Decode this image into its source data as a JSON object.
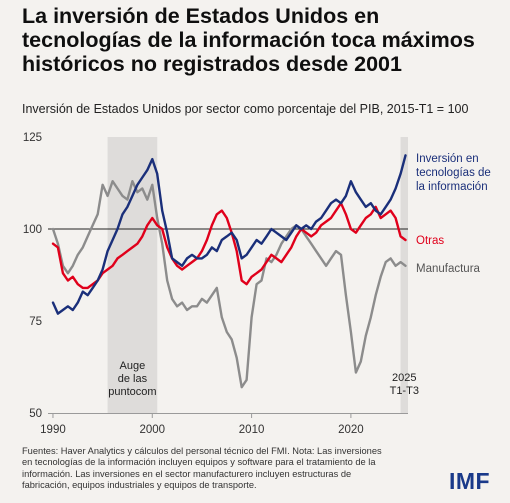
{
  "title_lines": [
    "La inversión de Estados Unidos en",
    "tecnologías de la información toca máximos",
    "históricos no registrados desde 2001"
  ],
  "subtitle": "Inversión de Estados Unidos por sector como porcentaje del PIB, 2015-T1 = 100",
  "footnote_lines": [
    "Fuentes: Haver Analytics y cálculos del personal técnico del FMI. Nota: Las inversiones",
    "en tecnologías de la información incluyen equipos y software para el tratamiento de la",
    "información. Las inversiones en el sector manufacturero incluyen estructuras de",
    "fabricación, equipos industriales y equipos de transporte."
  ],
  "logo": "IMF",
  "chart_data": {
    "type": "line",
    "xlim": [
      1989.5,
      2025.75
    ],
    "ylim": [
      50,
      125
    ],
    "x_ticks": [
      1990,
      2000,
      2010,
      2020
    ],
    "x_tick_labels": [
      "1990",
      "2000",
      "2010",
      "2020"
    ],
    "y_ticks": [
      50,
      75,
      100,
      125
    ],
    "y_tick_labels": [
      "50",
      "75",
      "100",
      "125"
    ],
    "grid": false,
    "reference_line": 100,
    "shaded_regions": [
      {
        "start": 1995.5,
        "end": 2000.5,
        "label_lines": [
          "Auge",
          "de las",
          "puntocom"
        ]
      },
      {
        "start": 2025.0,
        "end": 2025.75,
        "label_lines": [
          "2025",
          "T1-T3"
        ]
      }
    ],
    "colors": {
      "ti": "#1a2f7a",
      "otras": "#e0001b",
      "manufactura": "#8c8c8c",
      "shade": "#dedcda"
    },
    "series": [
      {
        "name": "Inversión en tecnologías de la información",
        "label_lines": [
          "Inversión en",
          "tecnologías de",
          "la información"
        ],
        "color": "#1a2f7a",
        "x": [
          1990,
          1990.5,
          1991,
          1991.5,
          1992,
          1992.5,
          1993,
          1993.5,
          1994,
          1994.5,
          1995,
          1995.5,
          1996,
          1996.5,
          1997,
          1997.5,
          1998,
          1998.5,
          1999,
          1999.5,
          2000,
          2000.5,
          2001,
          2001.5,
          2002,
          2002.5,
          2003,
          2003.5,
          2004,
          2004.5,
          2005,
          2005.5,
          2006,
          2006.5,
          2007,
          2007.5,
          2008,
          2008.5,
          2009,
          2009.5,
          2010,
          2010.5,
          2011,
          2011.5,
          2012,
          2012.5,
          2013,
          2013.5,
          2014,
          2014.5,
          2015,
          2015.5,
          2016,
          2016.5,
          2017,
          2017.5,
          2018,
          2018.5,
          2019,
          2019.5,
          2020,
          2020.5,
          2021,
          2021.5,
          2022,
          2022.5,
          2023,
          2023.5,
          2024,
          2024.5,
          2025,
          2025.5
        ],
        "values": [
          80,
          77,
          78,
          79,
          78,
          80,
          83,
          82,
          84,
          86,
          89,
          94,
          97,
          100,
          104,
          106,
          109,
          112,
          114,
          116,
          119,
          115,
          105,
          99,
          92,
          91,
          90,
          92,
          93,
          92,
          92,
          93,
          95,
          94,
          97,
          98,
          99,
          97,
          92,
          93,
          95,
          97,
          96,
          98,
          100,
          99,
          98,
          97,
          99,
          101,
          100,
          101,
          100,
          102,
          103,
          105,
          107,
          108,
          107,
          109,
          113,
          110,
          108,
          106,
          107,
          105,
          104,
          106,
          108,
          111,
          115,
          120
        ]
      },
      {
        "name": "Otras",
        "label_lines": [
          "Otras"
        ],
        "color": "#e0001b",
        "x": [
          1990,
          1990.5,
          1991,
          1991.5,
          1992,
          1992.5,
          1993,
          1993.5,
          1994,
          1994.5,
          1995,
          1995.5,
          1996,
          1996.5,
          1997,
          1997.5,
          1998,
          1998.5,
          1999,
          1999.5,
          2000,
          2000.5,
          2001,
          2001.5,
          2002,
          2002.5,
          2003,
          2003.5,
          2004,
          2004.5,
          2005,
          2005.5,
          2006,
          2006.5,
          2007,
          2007.5,
          2008,
          2008.5,
          2009,
          2009.5,
          2010,
          2010.5,
          2011,
          2011.5,
          2012,
          2012.5,
          2013,
          2013.5,
          2014,
          2014.5,
          2015,
          2015.5,
          2016,
          2016.5,
          2017,
          2017.5,
          2018,
          2018.5,
          2019,
          2019.5,
          2020,
          2020.5,
          2021,
          2021.5,
          2022,
          2022.5,
          2023,
          2023.5,
          2024,
          2024.5,
          2025,
          2025.5
        ],
        "values": [
          96,
          95,
          88,
          86,
          87,
          85,
          84,
          84,
          85,
          86,
          88,
          89,
          90,
          92,
          93,
          94,
          95,
          96,
          98,
          101,
          103,
          101,
          100,
          95,
          92,
          90,
          89,
          90,
          91,
          92,
          94,
          97,
          101,
          104,
          105,
          103,
          99,
          94,
          86,
          85,
          87,
          88,
          89,
          91,
          93,
          92,
          91,
          93,
          95,
          98,
          100,
          99,
          98,
          99,
          101,
          102,
          103,
          105,
          107,
          104,
          100,
          99,
          101,
          103,
          104,
          106,
          103,
          104,
          105,
          103,
          98,
          97
        ]
      },
      {
        "name": "Manufactura",
        "label_lines": [
          "Manufactura"
        ],
        "color": "#8c8c8c",
        "x": [
          1990,
          1990.5,
          1991,
          1991.5,
          1992,
          1992.5,
          1993,
          1993.5,
          1994,
          1994.5,
          1995,
          1995.5,
          1996,
          1996.5,
          1997,
          1997.5,
          1998,
          1998.5,
          1999,
          1999.5,
          2000,
          2000.5,
          2001,
          2001.5,
          2002,
          2002.5,
          2003,
          2003.5,
          2004,
          2004.5,
          2005,
          2005.5,
          2006,
          2006.5,
          2007,
          2007.5,
          2008,
          2008.5,
          2009,
          2009.5,
          2010,
          2010.5,
          2011,
          2011.5,
          2012,
          2012.5,
          2013,
          2013.5,
          2014,
          2014.5,
          2015,
          2015.5,
          2016,
          2016.5,
          2017,
          2017.5,
          2018,
          2018.5,
          2019,
          2019.5,
          2020,
          2020.5,
          2021,
          2021.5,
          2022,
          2022.5,
          2023,
          2023.5,
          2024,
          2024.5,
          2025,
          2025.5
        ],
        "values": [
          100,
          96,
          90,
          88,
          90,
          93,
          95,
          98,
          101,
          104,
          112,
          109,
          113,
          111,
          109,
          108,
          113,
          110,
          111,
          108,
          112,
          103,
          96,
          86,
          81,
          79,
          80,
          78,
          79,
          79,
          81,
          80,
          82,
          84,
          76,
          72,
          70,
          65,
          57,
          59,
          76,
          85,
          86,
          92,
          91,
          93,
          96,
          98,
          100,
          101,
          100,
          98,
          96,
          94,
          92,
          90,
          92,
          94,
          93,
          82,
          72,
          61,
          64,
          71,
          76,
          82,
          87,
          91,
          92,
          90,
          91,
          90
        ]
      }
    ]
  }
}
